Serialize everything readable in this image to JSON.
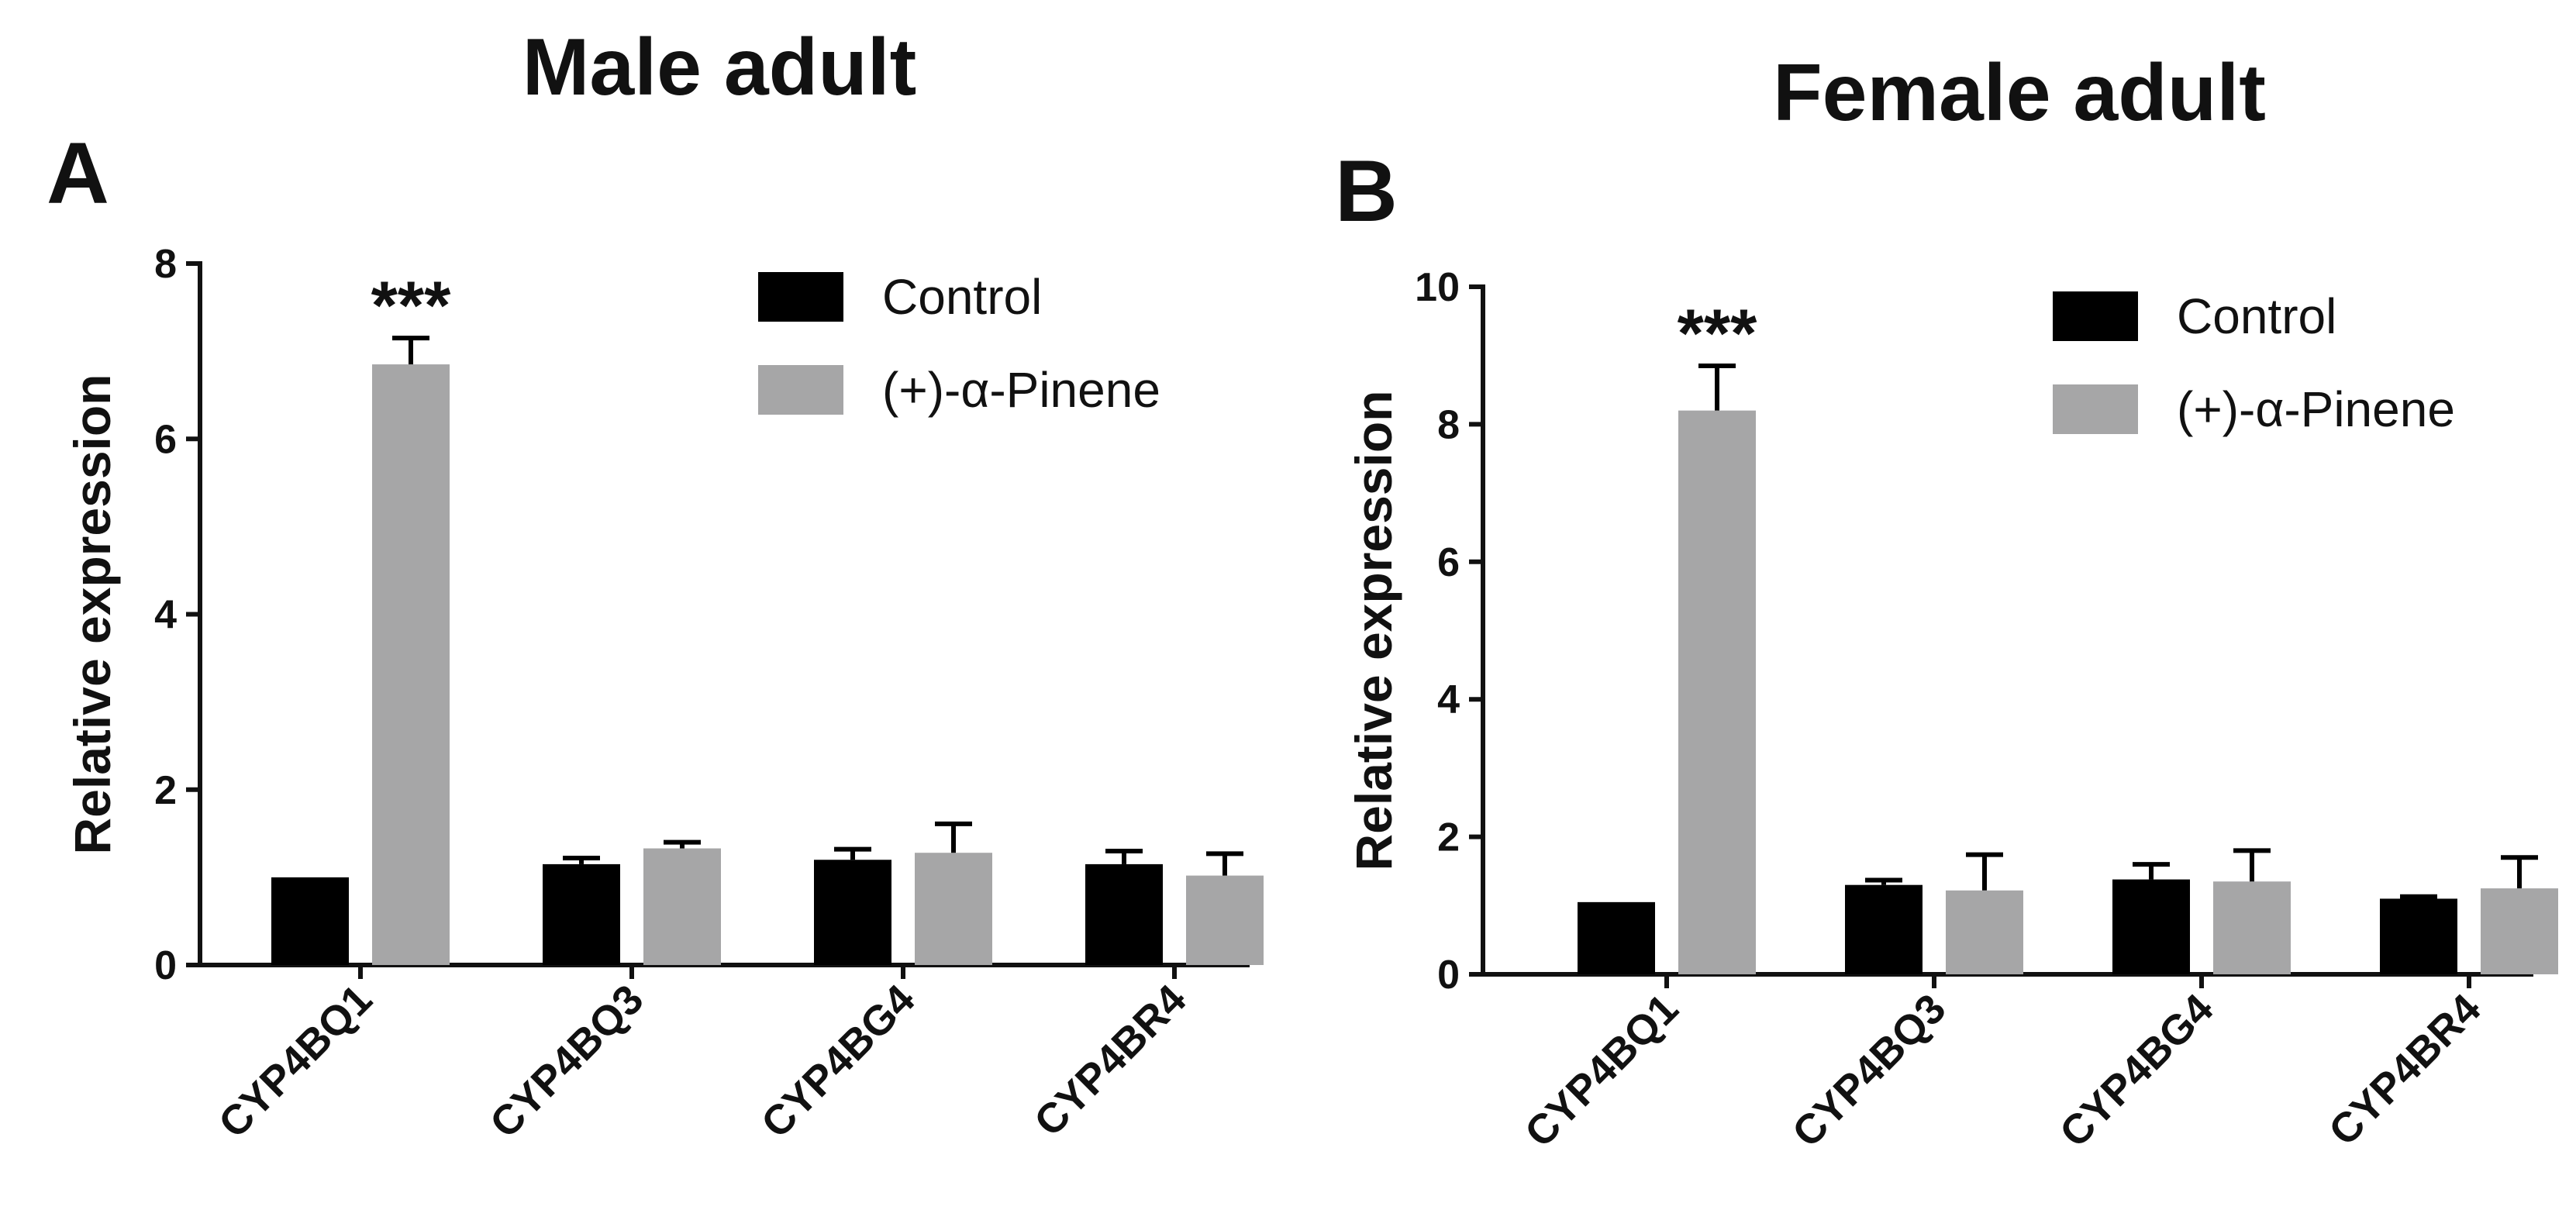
{
  "chart_data": [
    {
      "type": "bar",
      "panel": "A",
      "title": "Male adult",
      "xlabel": "",
      "ylabel": "Relative expression",
      "ylim": [
        0,
        8
      ],
      "yticks": [
        0,
        2,
        4,
        6,
        8
      ],
      "categories": [
        "CYP4BQ1",
        "CYP4BQ3",
        "CYP4BG4",
        "CYP4BR4"
      ],
      "legend_position": "top-right",
      "series": [
        {
          "name": "Control",
          "color": "#000000",
          "values": [
            1.0,
            1.15,
            1.2,
            1.15
          ],
          "errors": [
            0.0,
            0.07,
            0.12,
            0.15
          ]
        },
        {
          "name": "(+)-α-Pinene",
          "color": "#a6a6a7",
          "values": [
            6.85,
            1.33,
            1.28,
            1.02
          ],
          "errors": [
            0.3,
            0.07,
            0.33,
            0.25
          ]
        }
      ],
      "annotations": [
        {
          "category_index": 0,
          "series_index": 1,
          "text": "***"
        }
      ]
    },
    {
      "type": "bar",
      "panel": "B",
      "title": "Female adult",
      "xlabel": "",
      "ylabel": "Relative expression",
      "ylim": [
        0,
        10
      ],
      "yticks": [
        0,
        2,
        4,
        6,
        8,
        10
      ],
      "categories": [
        "CYP4BQ1",
        "CYP4BQ3",
        "CYP4BG4",
        "CYP4BR4"
      ],
      "legend_position": "top-right",
      "series": [
        {
          "name": "Control",
          "color": "#000000",
          "values": [
            1.05,
            1.3,
            1.38,
            1.1
          ],
          "errors": [
            0.0,
            0.07,
            0.22,
            0.03
          ]
        },
        {
          "name": "(+)-α-Pinene",
          "color": "#a6a6a7",
          "values": [
            8.2,
            1.22,
            1.35,
            1.25
          ],
          "errors": [
            0.65,
            0.52,
            0.45,
            0.45
          ]
        }
      ],
      "annotations": [
        {
          "category_index": 0,
          "series_index": 1,
          "text": "***"
        }
      ]
    }
  ]
}
